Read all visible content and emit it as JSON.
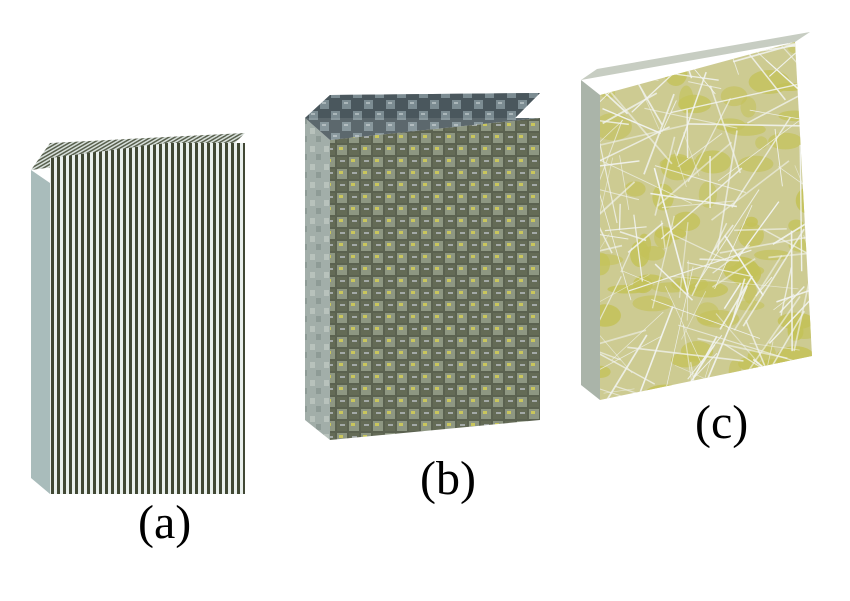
{
  "panels": [
    {
      "label": "(a)",
      "pattern": "unidirectional-fibers"
    },
    {
      "label": "(b)",
      "pattern": "woven-fabric"
    },
    {
      "label": "(c)",
      "pattern": "random-mat"
    }
  ],
  "colors": {
    "fiber_light": "#e9efec",
    "fiber_dark": "#414834",
    "side_face": "#9fb1b0",
    "weave_dark": "#555c4a",
    "weave_mid": "#8e9782",
    "weave_yellow": "#c9c65c",
    "weave_top": "#5d6d73",
    "mat_base": "#cbc98f",
    "mat_yellow": "#c4c259",
    "mat_fiber": "#f2f4f1",
    "mat_side": "#aeb6aa"
  }
}
